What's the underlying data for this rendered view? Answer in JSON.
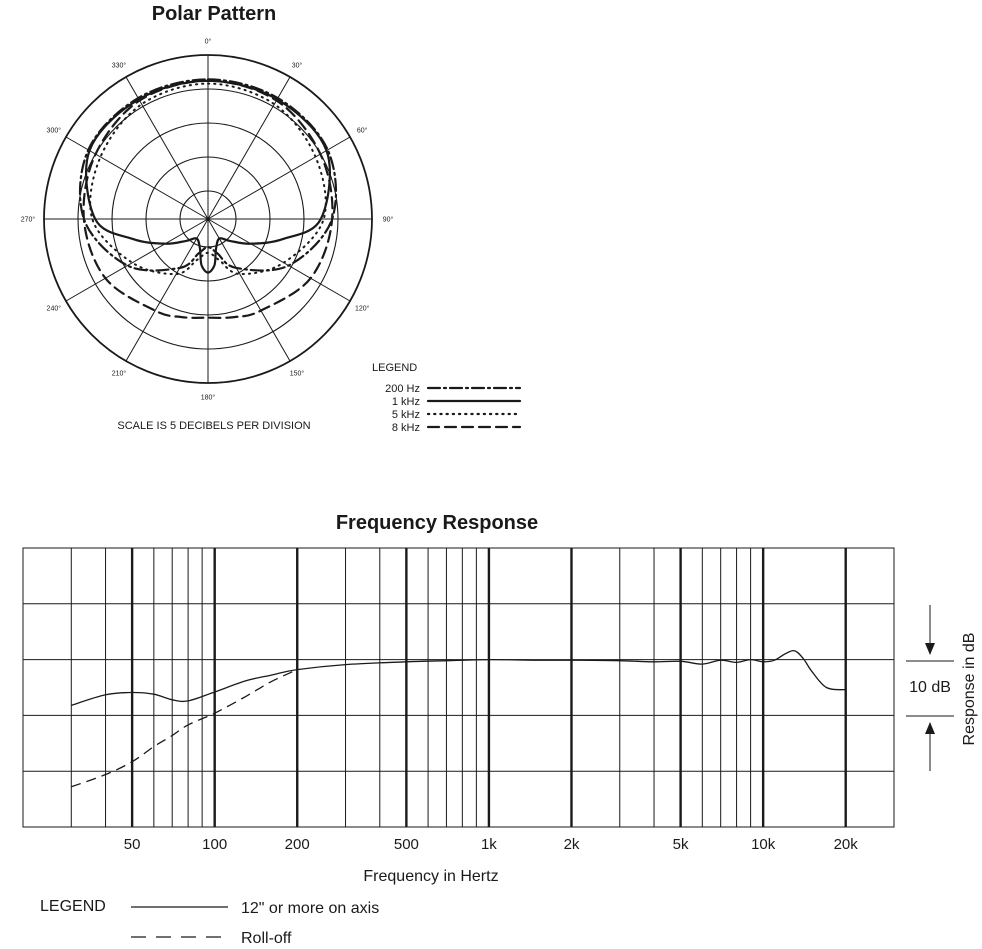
{
  "chart_data": [
    {
      "type": "polar",
      "title": "Polar Pattern",
      "angle_labels": [
        "0°",
        "30°",
        "60°",
        "90°",
        "120°",
        "150°",
        "180°",
        "210°",
        "240°",
        "270°",
        "300°",
        "330°"
      ],
      "scale_note": "SCALE IS 5 DECIBELS PER DIVISION",
      "rings": 5,
      "legend_title": "LEGEND",
      "legend_placement": "bottom-right",
      "series": [
        {
          "name": "200 Hz",
          "style": "dash-dot",
          "angles": [
            0,
            30,
            60,
            90,
            120,
            150,
            165,
            180,
            195,
            210,
            240,
            270,
            300,
            330
          ],
          "radii": [
            0.99,
            0.99,
            0.98,
            0.88,
            0.66,
            0.4,
            0.25,
            0.2,
            0.25,
            0.4,
            0.66,
            0.88,
            0.98,
            0.99
          ]
        },
        {
          "name": "1 kHz",
          "style": "solid",
          "angles": [
            0,
            30,
            60,
            90,
            105,
            120,
            135,
            150,
            165,
            172,
            180,
            188,
            195,
            210,
            225,
            240,
            255,
            270,
            300,
            330
          ],
          "radii": [
            0.98,
            0.98,
            0.97,
            0.8,
            0.55,
            0.35,
            0.22,
            0.16,
            0.22,
            0.33,
            0.38,
            0.33,
            0.22,
            0.16,
            0.22,
            0.35,
            0.55,
            0.8,
            0.97,
            0.98
          ]
        },
        {
          "name": "5 kHz",
          "style": "dotted",
          "angles": [
            0,
            30,
            60,
            90,
            120,
            150,
            165,
            180,
            195,
            210,
            240,
            270,
            300,
            330
          ],
          "radii": [
            0.96,
            0.94,
            0.88,
            0.82,
            0.62,
            0.45,
            0.3,
            0.24,
            0.3,
            0.45,
            0.62,
            0.82,
            0.88,
            0.94
          ]
        },
        {
          "name": "8 kHz",
          "style": "dashed",
          "angles": [
            0,
            30,
            60,
            90,
            120,
            150,
            165,
            180,
            195,
            210,
            240,
            270,
            300,
            330
          ],
          "radii": [
            0.98,
            0.97,
            0.92,
            0.88,
            0.84,
            0.75,
            0.72,
            0.7,
            0.72,
            0.75,
            0.84,
            0.88,
            0.92,
            0.97
          ]
        }
      ]
    },
    {
      "type": "line",
      "title": "Frequency Response",
      "xlabel": "Frequency in Hertz",
      "ylabel": "Response in dB",
      "x_scale": "log",
      "xlim": [
        20,
        30000
      ],
      "ylim": [
        -20,
        30
      ],
      "tick_labels": [
        {
          "value": 50,
          "label": "50"
        },
        {
          "value": 100,
          "label": "100"
        },
        {
          "value": 200,
          "label": "200"
        },
        {
          "value": 500,
          "label": "500"
        },
        {
          "value": 1000,
          "label": "1k"
        },
        {
          "value": 2000,
          "label": "2k"
        },
        {
          "value": 5000,
          "label": "5k"
        },
        {
          "value": 10000,
          "label": "10k"
        },
        {
          "value": 20000,
          "label": "20k"
        }
      ],
      "scale_marker": "10 dB",
      "grid": true,
      "legend_title": "LEGEND",
      "legend_placement": "bottom-left",
      "series": [
        {
          "name": "12\" or more on axis",
          "style": "solid",
          "x": [
            30,
            40,
            50,
            60,
            70,
            80,
            100,
            130,
            160,
            200,
            300,
            500,
            700,
            1000,
            1500,
            2000,
            3000,
            4000,
            5000,
            6000,
            7000,
            8000,
            9000,
            10000,
            11000,
            12000,
            13000,
            14000,
            15000,
            17000,
            20000
          ],
          "y": [
            1.8,
            3.7,
            4.1,
            3.8,
            2.8,
            2.6,
            4.2,
            6.2,
            7.2,
            8.2,
            9.1,
            9.6,
            9.8,
            10.0,
            9.9,
            9.9,
            9.8,
            9.6,
            9.7,
            9.2,
            9.9,
            9.5,
            10.0,
            9.6,
            9.9,
            11.0,
            11.6,
            10.2,
            8.0,
            5.0,
            4.6
          ]
        },
        {
          "name": "Roll-off",
          "style": "dashed",
          "x": [
            30,
            40,
            50,
            60,
            70,
            80,
            100,
            130,
            160,
            200
          ],
          "y": [
            -12.8,
            -10.6,
            -8.3,
            -5.6,
            -3.6,
            -1.7,
            0.4,
            3.4,
            6.0,
            8.2
          ]
        }
      ]
    }
  ]
}
